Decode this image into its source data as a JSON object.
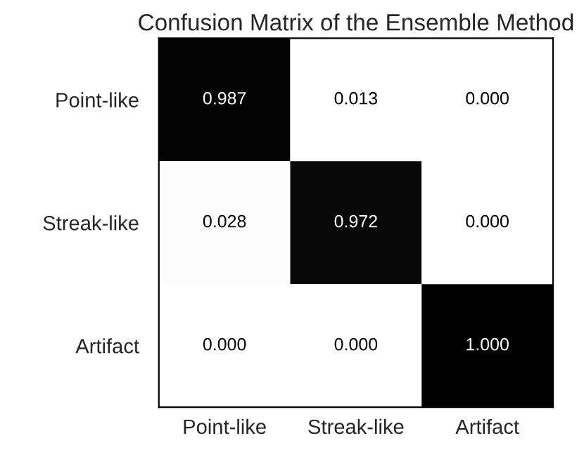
{
  "chart_data": {
    "type": "heatmap",
    "title": "Confusion Matrix of the Ensemble Method",
    "categories": [
      "Point-like",
      "Streak-like",
      "Artifact"
    ],
    "y_categories": [
      "Point-like",
      "Streak-like",
      "Artifact"
    ],
    "cells": [
      [
        0.987,
        0.013,
        0.0
      ],
      [
        0.028,
        0.972,
        0.0
      ],
      [
        0.0,
        0.0,
        1.0
      ]
    ],
    "cell_labels": [
      [
        "0.987",
        "0.013",
        "0.000"
      ],
      [
        "0.028",
        "0.972",
        "0.000"
      ],
      [
        "0.000",
        "0.000",
        "1.000"
      ]
    ]
  }
}
